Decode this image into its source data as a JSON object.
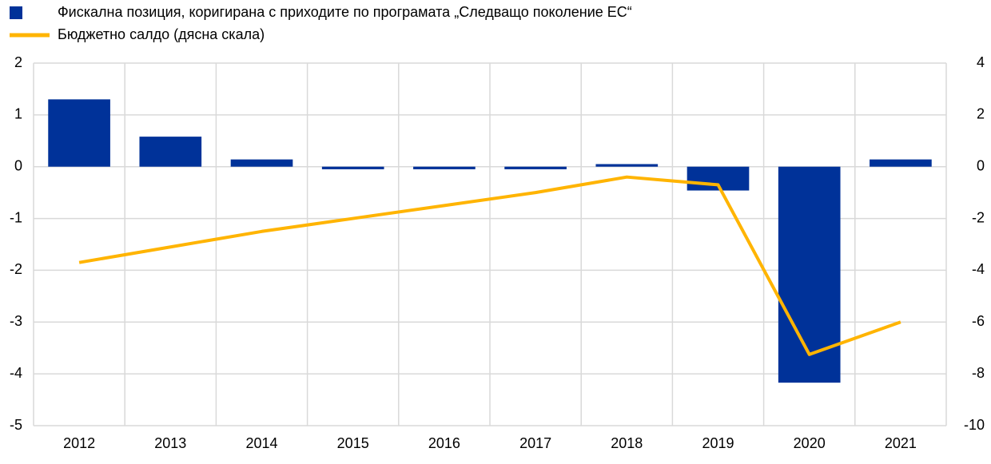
{
  "chart_data": {
    "type": "bar",
    "categories": [
      "2012",
      "2013",
      "2014",
      "2015",
      "2016",
      "2017",
      "2018",
      "2019",
      "2020",
      "2021"
    ],
    "series": [
      {
        "name": "Фискална позиция, коригирана с приходите по програмата „Следващо поколение ЕС“",
        "type": "bar",
        "color": "#003299",
        "values": [
          1.3,
          0.58,
          0.14,
          -0.05,
          -0.05,
          -0.05,
          0.05,
          -0.46,
          -4.17,
          0.14
        ]
      },
      {
        "name": "Бюджетно салдо (дясна скала)",
        "type": "line",
        "axis": "y2",
        "color": "#ffb400",
        "values": [
          -3.7,
          -3.1,
          -2.5,
          -2.0,
          -1.5,
          -1.0,
          -0.4,
          -0.7,
          -7.25,
          -6.0
        ]
      }
    ],
    "ylim": [
      -5,
      2
    ],
    "yticks": [
      2,
      1,
      0,
      -1,
      -2,
      -3,
      -4,
      -5
    ],
    "y2lim": [
      -10,
      4
    ],
    "y2ticks": [
      4,
      2,
      0,
      -2,
      -4,
      -6,
      -8,
      -10
    ],
    "grid": true
  }
}
